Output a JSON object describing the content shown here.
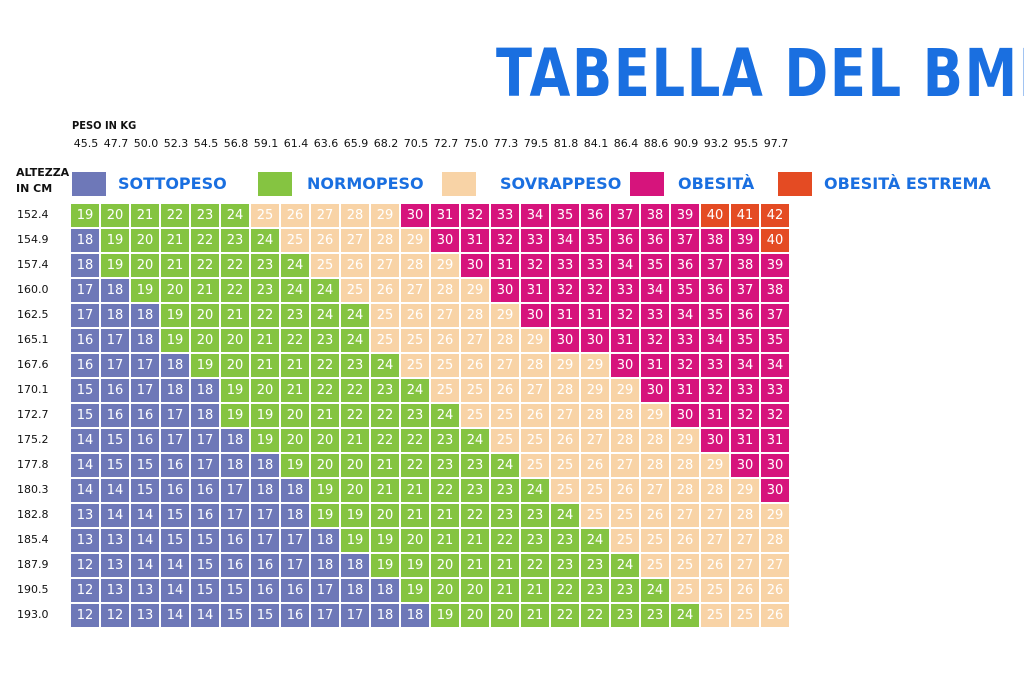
{
  "title": "TABELLA DEL BMI",
  "colors": {
    "sottopeso": "#6e78b8",
    "normopeso": "#85c441",
    "sovrappeso": "#f8d3a6",
    "obesita": "#d6147c",
    "obesita_estrema": "#e44b23",
    "title": "#1a6fe0"
  },
  "legend": [
    {
      "label": "SOTTOPESO",
      "color": "#6e78b8"
    },
    {
      "label": "NORMOPESO",
      "color": "#85c441"
    },
    {
      "label": "SOVRAPPESO",
      "color": "#f8d3a6"
    },
    {
      "label": "OBESITÀ",
      "color": "#d6147c"
    },
    {
      "label": "OBESITÀ ESTREMA",
      "color": "#e44b23"
    }
  ],
  "chart_data": {
    "type": "table",
    "title": "TABELLA DEL BMI",
    "xlabel": "PESO IN KG",
    "ylabel": [
      "ALTEZZA",
      "IN CM"
    ],
    "weights": [
      "45.5",
      "47.7",
      "50.0",
      "52.3",
      "54.5",
      "56.8",
      "59.1",
      "61.4",
      "63.6",
      "65.9",
      "68.2",
      "70.5",
      "72.7",
      "75.0",
      "77.3",
      "79.5",
      "81.8",
      "84.1",
      "86.4",
      "88.6",
      "90.9",
      "93.2",
      "95.5",
      "97.7"
    ],
    "heights": [
      "152.4",
      "154.9",
      "157.4",
      "160.0",
      "162.5",
      "165.1",
      "167.6",
      "170.1",
      "172.7",
      "175.2",
      "177.8",
      "180.3",
      "182.8",
      "185.4",
      "187.9",
      "190.5",
      "193.0"
    ],
    "values": [
      [
        19,
        20,
        21,
        22,
        23,
        24,
        25,
        26,
        27,
        28,
        29,
        30,
        31,
        32,
        33,
        34,
        35,
        36,
        37,
        38,
        39,
        40,
        41,
        42
      ],
      [
        18,
        19,
        20,
        21,
        22,
        23,
        24,
        25,
        26,
        27,
        28,
        29,
        30,
        31,
        32,
        33,
        34,
        35,
        36,
        36,
        37,
        38,
        39,
        40
      ],
      [
        18,
        19,
        20,
        21,
        22,
        22,
        23,
        24,
        25,
        26,
        27,
        28,
        29,
        30,
        31,
        32,
        33,
        33,
        34,
        35,
        36,
        37,
        38,
        39
      ],
      [
        17,
        18,
        19,
        20,
        21,
        22,
        23,
        24,
        24,
        25,
        26,
        27,
        28,
        29,
        30,
        31,
        32,
        32,
        33,
        34,
        35,
        36,
        37,
        38
      ],
      [
        17,
        18,
        18,
        19,
        20,
        21,
        22,
        23,
        24,
        24,
        25,
        26,
        27,
        28,
        29,
        30,
        31,
        31,
        32,
        33,
        34,
        35,
        36,
        37
      ],
      [
        16,
        17,
        18,
        19,
        20,
        20,
        21,
        22,
        23,
        24,
        25,
        25,
        26,
        27,
        28,
        29,
        30,
        30,
        31,
        32,
        33,
        34,
        35,
        35
      ],
      [
        16,
        17,
        17,
        18,
        19,
        20,
        21,
        21,
        22,
        23,
        24,
        25,
        25,
        26,
        27,
        28,
        29,
        29,
        30,
        31,
        32,
        33,
        34,
        34
      ],
      [
        15,
        16,
        17,
        18,
        18,
        19,
        20,
        21,
        22,
        22,
        23,
        24,
        25,
        25,
        26,
        27,
        28,
        29,
        29,
        30,
        31,
        32,
        33,
        33
      ],
      [
        15,
        16,
        16,
        17,
        18,
        19,
        19,
        20,
        21,
        22,
        22,
        23,
        24,
        25,
        25,
        26,
        27,
        28,
        28,
        29,
        30,
        31,
        32,
        32
      ],
      [
        14,
        15,
        16,
        17,
        17,
        18,
        19,
        20,
        20,
        21,
        22,
        22,
        23,
        24,
        25,
        25,
        26,
        27,
        28,
        28,
        29,
        30,
        31,
        31
      ],
      [
        14,
        15,
        15,
        16,
        17,
        18,
        18,
        19,
        20,
        20,
        21,
        22,
        23,
        23,
        24,
        25,
        25,
        26,
        27,
        28,
        28,
        29,
        30,
        30
      ],
      [
        14,
        14,
        15,
        16,
        16,
        17,
        18,
        18,
        19,
        20,
        21,
        21,
        22,
        23,
        23,
        24,
        25,
        25,
        26,
        27,
        28,
        28,
        29,
        30
      ],
      [
        13,
        14,
        14,
        15,
        16,
        17,
        17,
        18,
        19,
        19,
        20,
        21,
        21,
        22,
        23,
        23,
        24,
        25,
        25,
        26,
        27,
        27,
        28,
        29
      ],
      [
        13,
        13,
        14,
        15,
        15,
        16,
        17,
        17,
        18,
        19,
        19,
        20,
        21,
        21,
        22,
        23,
        23,
        24,
        25,
        25,
        26,
        27,
        27,
        28
      ],
      [
        12,
        13,
        14,
        14,
        15,
        16,
        16,
        17,
        18,
        18,
        19,
        19,
        20,
        21,
        21,
        22,
        23,
        23,
        24,
        25,
        25,
        26,
        27,
        27
      ],
      [
        12,
        13,
        13,
        14,
        15,
        15,
        16,
        16,
        17,
        18,
        18,
        19,
        20,
        20,
        21,
        21,
        22,
        23,
        23,
        24,
        25,
        25,
        26,
        26
      ],
      [
        12,
        12,
        13,
        14,
        14,
        15,
        15,
        16,
        17,
        17,
        18,
        18,
        19,
        20,
        20,
        21,
        22,
        22,
        23,
        23,
        24,
        25,
        25,
        26
      ]
    ]
  }
}
